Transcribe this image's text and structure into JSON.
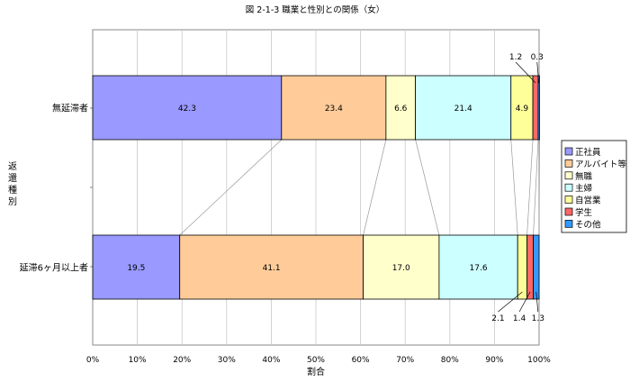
{
  "chart_data": {
    "type": "bar",
    "stacked": true,
    "orientation": "horizontal",
    "title": "図 2-1-3 職業と性別との関係（女）",
    "xlabel": "割合",
    "ylabel": "返還種別",
    "xlim": [
      0,
      100
    ],
    "x_ticks": [
      "0%",
      "10%",
      "20%",
      "30%",
      "40%",
      "50%",
      "60%",
      "70%",
      "80%",
      "90%",
      "100%"
    ],
    "grid": true,
    "legend_position": "right",
    "categories": [
      "無延滞者",
      "延滞6ヶ月以上者"
    ],
    "series": [
      {
        "name": "正社員",
        "color": "#9999ff",
        "values": [
          42.3,
          19.5
        ]
      },
      {
        "name": "アルバイト等",
        "color": "#ffcc99",
        "values": [
          23.4,
          41.1
        ]
      },
      {
        "name": "無職",
        "color": "#ffffcc",
        "values": [
          6.6,
          17.0
        ]
      },
      {
        "name": "主婦",
        "color": "#ccffff",
        "values": [
          21.4,
          17.6
        ]
      },
      {
        "name": "自営業",
        "color": "#ffff99",
        "values": [
          4.9,
          2.1
        ]
      },
      {
        "name": "学生",
        "color": "#ff6666",
        "values": [
          1.2,
          1.4
        ]
      },
      {
        "name": "その他",
        "color": "#3399ff",
        "values": [
          0.3,
          1.3
        ]
      }
    ],
    "data_labels": [
      [
        "42.3",
        "23.4",
        "6.6",
        "21.4",
        "4.9",
        "1.2",
        "0.3"
      ],
      [
        "19.5",
        "41.1",
        "17.0",
        "17.6",
        "2.1",
        "1.4",
        "1.3"
      ]
    ]
  }
}
